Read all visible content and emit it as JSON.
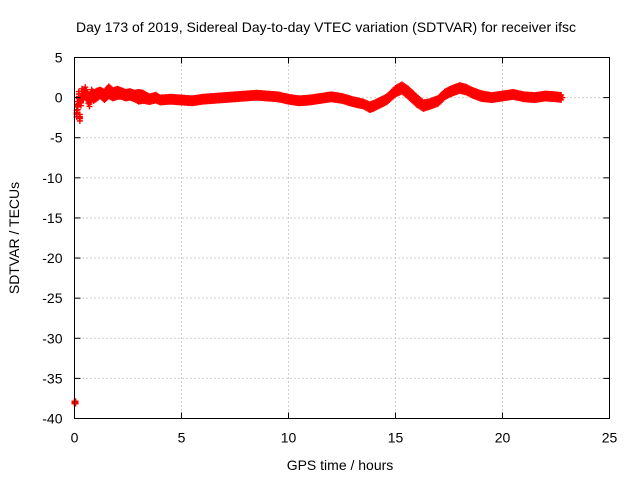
{
  "chart_data": {
    "type": "scatter",
    "title": "Day 173 of 2019, Sidereal Day-to-day VTEC variation (SDTVAR) for receiver ifsc",
    "xlabel": "GPS time / hours",
    "ylabel": "SDTVAR / TECUs",
    "xlim": [
      0,
      25
    ],
    "ylim": [
      -40,
      5
    ],
    "xticks": [
      0,
      5,
      10,
      15,
      20,
      25
    ],
    "yticks": [
      -40,
      -35,
      -30,
      -25,
      -20,
      -15,
      -10,
      -5,
      0,
      5
    ],
    "grid": true,
    "legend": "none",
    "marker": "plus",
    "color": "#ff0000",
    "series": [
      {
        "x": [
          0.0,
          0.05,
          0.1,
          0.15,
          0.2,
          0.25,
          0.3,
          0.35,
          0.4,
          0.5,
          0.6,
          0.7,
          0.8,
          0.9,
          1.0,
          1.2,
          1.4,
          1.6,
          1.8,
          2.0,
          2.2,
          2.4,
          2.6,
          2.8,
          3.0,
          3.2,
          3.5,
          3.8,
          4.0,
          4.5,
          5.0,
          5.5,
          6.0,
          6.5,
          7.0,
          7.5,
          8.0,
          8.5,
          9.0,
          9.5,
          10.0,
          10.5,
          11.0,
          11.5,
          12.0,
          12.5,
          13.0,
          13.5,
          13.8,
          14.0,
          14.3,
          14.6,
          15.0,
          15.3,
          15.6,
          16.0,
          16.3,
          16.6,
          17.0,
          17.3,
          17.6,
          18.0,
          18.3,
          18.6,
          19.0,
          19.5,
          20.0,
          20.5,
          21.0,
          21.5,
          22.0,
          22.5,
          22.8
        ],
        "y": [
          -38.0,
          -38.0,
          -2.0,
          -1.0,
          0.0,
          -2.5,
          -0.5,
          0.5,
          0.3,
          0.8,
          0.2,
          -0.5,
          0.5,
          0.1,
          0.3,
          0.6,
          0.2,
          0.8,
          0.4,
          0.6,
          0.5,
          0.3,
          0.4,
          0.2,
          0.1,
          0.1,
          -0.2,
          0.0,
          -0.3,
          -0.2,
          -0.3,
          -0.4,
          -0.2,
          -0.1,
          0.0,
          0.1,
          0.2,
          0.3,
          0.2,
          0.1,
          -0.2,
          -0.4,
          -0.3,
          -0.1,
          0.1,
          -0.1,
          -0.5,
          -0.8,
          -1.2,
          -1.0,
          -0.6,
          -0.2,
          0.8,
          1.2,
          0.6,
          -0.4,
          -1.0,
          -0.8,
          -0.4,
          0.4,
          0.8,
          1.2,
          1.0,
          0.6,
          0.2,
          0.0,
          0.2,
          0.4,
          0.1,
          0.0,
          0.2,
          0.1,
          0.0
        ],
        "spread": [
          0.3,
          0.3,
          0.8,
          1.0,
          1.5,
          0.8,
          1.0,
          1.2,
          1.0,
          1.0,
          1.0,
          1.2,
          1.0,
          1.0,
          1.0,
          0.8,
          1.0,
          1.2,
          1.0,
          1.0,
          0.8,
          0.8,
          0.8,
          0.8,
          1.2,
          1.0,
          0.7,
          0.7,
          0.6,
          0.6,
          0.6,
          0.6,
          0.6,
          0.6,
          0.6,
          0.6,
          0.6,
          0.6,
          0.6,
          0.6,
          0.6,
          0.6,
          0.6,
          0.6,
          0.6,
          0.6,
          0.6,
          0.6,
          0.7,
          0.7,
          0.7,
          0.7,
          0.8,
          0.9,
          1.0,
          1.0,
          0.8,
          0.7,
          0.7,
          0.7,
          0.7,
          0.7,
          0.7,
          0.7,
          0.7,
          0.6,
          0.6,
          0.6,
          0.6,
          0.6,
          0.6,
          0.6,
          0.6
        ]
      }
    ]
  }
}
